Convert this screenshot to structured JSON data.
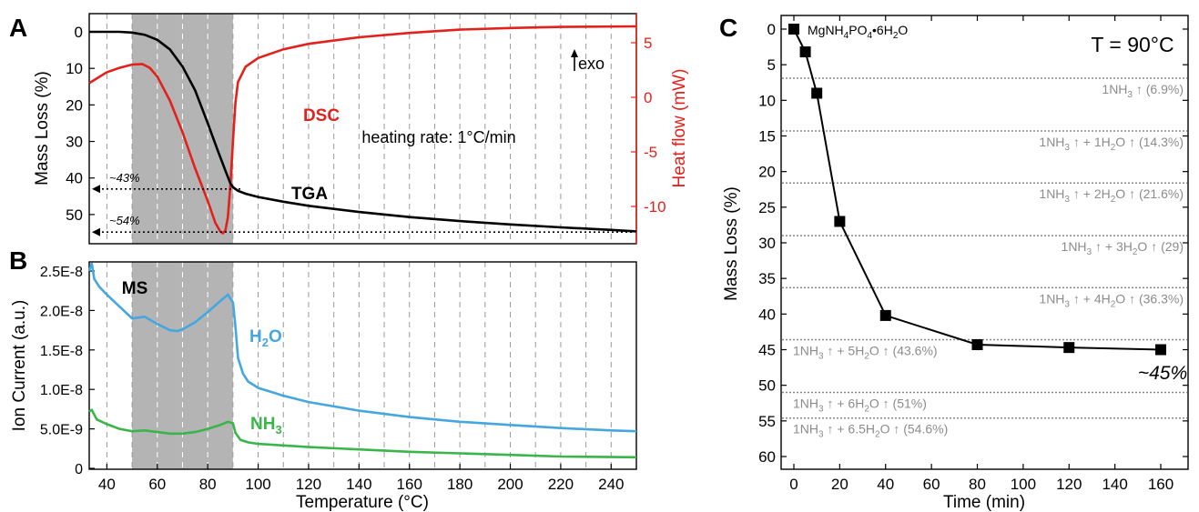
{
  "colors": {
    "tga": "#000000",
    "dsc": "#e3211c",
    "h2o": "#45a7df",
    "nh3": "#3ab54a",
    "shade": "#b4b4b4",
    "ref_line": "#888888",
    "ref_text": "#8c8c8c"
  },
  "chart_data": [
    {
      "panel_label": "A",
      "type": "line",
      "xlim": [
        33,
        250
      ],
      "ylim": [
        0,
        55
      ],
      "ylim_right": [
        -12.5,
        6.5
      ],
      "y_inverted": true,
      "grid": "vertical dashed",
      "ylabel": "Mass Loss (%)",
      "ylabel_right": "Heat flow  (mW)",
      "yticks": [
        0,
        10,
        20,
        30,
        40,
        50
      ],
      "yticks_right": [
        5,
        0,
        -5,
        -10
      ],
      "shaded_region": [
        50,
        90
      ],
      "annotations": [
        "heating rate: 1°C/min",
        "exo",
        "~43%",
        "~54%"
      ],
      "arrow_levels": [
        {
          "label": "~43%",
          "y": 43
        },
        {
          "label": "~54%",
          "y": 54.8
        }
      ],
      "series": [
        {
          "name": "TGA",
          "axis": "left",
          "x": [
            33,
            45,
            50,
            55,
            60,
            65,
            70,
            75,
            80,
            84,
            87,
            89,
            90,
            92,
            95,
            100,
            110,
            120,
            140,
            160,
            180,
            200,
            220,
            240,
            250
          ],
          "y": [
            0,
            0,
            0.2,
            0.8,
            2.2,
            4.8,
            9.5,
            16,
            25,
            32.5,
            38,
            41.5,
            42.5,
            43.5,
            44.3,
            45.2,
            46.5,
            47.6,
            49.3,
            50.7,
            51.8,
            52.7,
            53.5,
            54.2,
            54.6
          ]
        },
        {
          "name": "DSC",
          "axis": "right",
          "x": [
            33,
            40,
            45,
            50,
            54,
            57,
            60,
            65,
            70,
            75,
            80,
            83,
            85,
            86,
            87,
            88,
            89,
            90,
            91,
            92,
            95,
            100,
            110,
            120,
            140,
            160,
            180,
            200,
            220,
            250
          ],
          "y": [
            1.3,
            2.3,
            2.7,
            3.0,
            3.05,
            2.7,
            1.9,
            -0.3,
            -3.2,
            -6.5,
            -9.5,
            -11.5,
            -12.3,
            -12.45,
            -12.2,
            -11,
            -8,
            -4,
            -0.5,
            1.4,
            2.8,
            3.6,
            4.4,
            4.9,
            5.5,
            5.9,
            6.2,
            6.35,
            6.45,
            6.5
          ]
        }
      ]
    },
    {
      "panel_label": "B",
      "type": "line",
      "xlim": [
        33,
        250
      ],
      "ylim": [
        0,
        2.65e-08
      ],
      "grid": "vertical dashed",
      "xlabel": "Temperature (°C)",
      "ylabel": "Ion Current  (a.u.)",
      "xticks": [
        40,
        60,
        80,
        100,
        120,
        140,
        160,
        180,
        200,
        220,
        240
      ],
      "ytick_labels": [
        "0",
        "5.0E-9",
        "1.0E-8",
        "1.5E-8",
        "2.0E-8",
        "2.5E-8"
      ],
      "shaded_region": [
        50,
        90
      ],
      "annotations": [
        "MS"
      ],
      "series": [
        {
          "name": "H2O",
          "subscript": "2",
          "x": [
            33,
            34,
            35,
            37,
            40,
            45,
            50,
            55,
            60,
            65,
            68,
            70,
            75,
            80,
            85,
            88,
            90,
            91,
            92,
            94,
            96,
            100,
            110,
            120,
            140,
            160,
            180,
            200,
            220,
            240,
            250
          ],
          "y": [
            2.5e-08,
            2.6e-08,
            2.4e-08,
            2.3e-08,
            2.2e-08,
            2.05e-08,
            1.9e-08,
            1.92e-08,
            1.83e-08,
            1.75e-08,
            1.74e-08,
            1.76e-08,
            1.85e-08,
            1.98e-08,
            2.12e-08,
            2.2e-08,
            2.1e-08,
            1.8e-08,
            1.4e-08,
            1.2e-08,
            1.1e-08,
            1.02e-08,
            9.2e-09,
            8.4e-09,
            7.3e-09,
            6.5e-09,
            5.9e-09,
            5.5e-09,
            5.1e-09,
            4.8e-09,
            4.7e-09
          ]
        },
        {
          "name": "NH3",
          "subscript": "3",
          "x": [
            33,
            34,
            36,
            40,
            45,
            50,
            55,
            60,
            65,
            70,
            75,
            80,
            85,
            88,
            90,
            91,
            93,
            96,
            100,
            110,
            120,
            140,
            160,
            180,
            200,
            220,
            250
          ],
          "y": [
            7.2e-09,
            7.4e-09,
            6.2e-09,
            5.6e-09,
            5e-09,
            4.7e-09,
            4.8e-09,
            4.6e-09,
            4.4e-09,
            4.4e-09,
            4.6e-09,
            5e-09,
            5.5e-09,
            5.9e-09,
            5.7e-09,
            4.5e-09,
            3.6e-09,
            3.3e-09,
            3.1e-09,
            2.9e-09,
            2.7e-09,
            2.4e-09,
            2.1e-09,
            1.9e-09,
            1.7e-09,
            1.5e-09,
            1.4e-09
          ]
        }
      ]
    },
    {
      "panel_label": "C",
      "type": "line",
      "xlim": [
        -3,
        165
      ],
      "ylim": [
        -2,
        61
      ],
      "y_inverted": true,
      "grid": "none",
      "xlabel": "Time (min)",
      "ylabel": "Mass Loss (%)",
      "xticks": [
        0,
        20,
        40,
        60,
        80,
        100,
        120,
        140,
        160
      ],
      "yticks": [
        0,
        5,
        10,
        15,
        20,
        25,
        30,
        35,
        40,
        45,
        50,
        55,
        60
      ],
      "title": "T = 90°C",
      "start_label": {
        "main": "MgNH",
        "sub1": "4",
        "mid": "PO",
        "sub2": "4",
        "end": "•6H",
        "sub3": "2",
        "tail": "O"
      },
      "final_label": "~45%",
      "series": [
        {
          "name": "",
          "marker": "square",
          "x": [
            0,
            5,
            10,
            20,
            40,
            80,
            120,
            160
          ],
          "y": [
            0,
            3.2,
            9,
            27,
            40.2,
            44.3,
            44.7,
            45
          ]
        }
      ],
      "reference_lines": [
        {
          "y": 6.9,
          "nh3": "1",
          "h2o": "",
          "value": "6.9%",
          "anchor": "right"
        },
        {
          "y": 14.3,
          "nh3": "1",
          "h2o": "1",
          "value": "14.3%",
          "anchor": "right"
        },
        {
          "y": 21.6,
          "nh3": "1",
          "h2o": "2",
          "value": "21.6%",
          "anchor": "right"
        },
        {
          "y": 29,
          "nh3": "1",
          "h2o": "3",
          "value": "29",
          "anchor": "right"
        },
        {
          "y": 36.3,
          "nh3": "1",
          "h2o": "4",
          "value": "36.3%",
          "anchor": "right"
        },
        {
          "y": 43.6,
          "nh3": "1",
          "h2o": "5",
          "value": "43.6%",
          "anchor": "left"
        },
        {
          "y": 51,
          "nh3": "1",
          "h2o": "6",
          "value": "51%",
          "anchor": "left"
        },
        {
          "y": 54.6,
          "nh3": "1",
          "h2o": "6.5",
          "value": "54.6%",
          "anchor": "left"
        }
      ]
    }
  ]
}
